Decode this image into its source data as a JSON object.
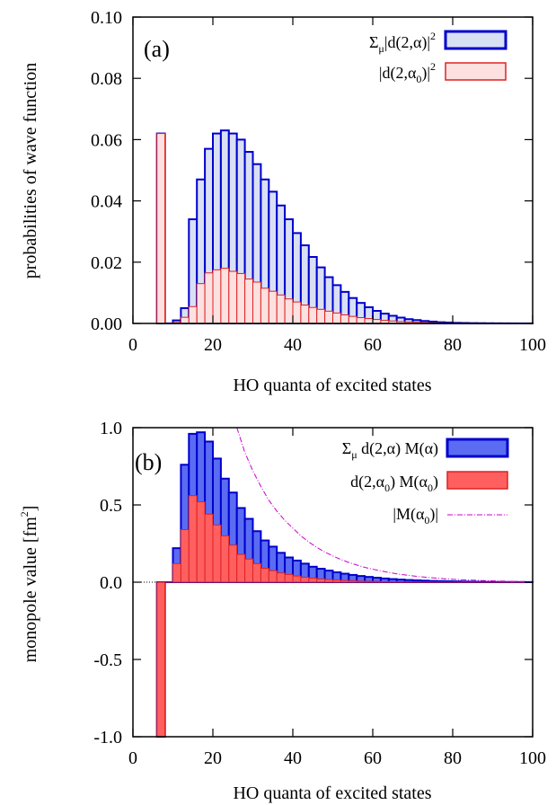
{
  "chart_data": [
    {
      "type": "bar",
      "panel_label": "(a)",
      "xlabel": "HO quanta of excited states",
      "ylabel": "probabilities of wave function",
      "xlim": [
        0,
        100
      ],
      "ylim": [
        0,
        0.1
      ],
      "xticks": [
        "0",
        "20",
        "40",
        "60",
        "80",
        "100"
      ],
      "yticks": [
        "0.00",
        "0.02",
        "0.04",
        "0.06",
        "0.08",
        "0.10"
      ],
      "bar_width": 2,
      "legend_position": "top-right",
      "legend_labels": [
        {
          "base": "Σ",
          "sub": "μ",
          "rest": "|d(2,α)|",
          "sup": "2"
        },
        {
          "base": "|d(2,α",
          "sub": "0",
          "rest": ")|",
          "sup": "2"
        }
      ],
      "series": [
        {
          "name": "Σμ|d(2,α)|²",
          "color": "#0000cc",
          "fill": "#d8e0f4",
          "x": [
            6,
            8,
            10,
            12,
            14,
            16,
            18,
            20,
            22,
            24,
            26,
            28,
            30,
            32,
            34,
            36,
            38,
            40,
            42,
            44,
            46,
            48,
            50,
            52,
            54,
            56,
            58,
            60,
            62,
            64,
            66,
            68,
            70,
            72,
            74,
            76,
            78,
            80,
            82,
            84,
            86,
            88,
            90,
            92,
            94,
            96,
            98
          ],
          "values": [
            0.062,
            0.0,
            0.001,
            0.005,
            0.034,
            0.047,
            0.057,
            0.062,
            0.063,
            0.062,
            0.06,
            0.056,
            0.052,
            0.047,
            0.043,
            0.0385,
            0.034,
            0.0295,
            0.0255,
            0.0217,
            0.0183,
            0.0151,
            0.0125,
            0.0103,
            0.0083,
            0.0067,
            0.0053,
            0.0041,
            0.0032,
            0.0025,
            0.0019,
            0.0014,
            0.0011,
            0.0008,
            0.0006,
            0.0004,
            0.0003,
            0.0002,
            0.00015,
            0.0001,
            8e-05,
            6e-05,
            4e-05,
            3e-05,
            2e-05,
            1e-05,
            1e-05
          ]
        },
        {
          "name": "|d(2,α0)|²",
          "color": "#dd2222",
          "fill": "#fde0e0",
          "x": [
            6,
            8,
            10,
            12,
            14,
            16,
            18,
            20,
            22,
            24,
            26,
            28,
            30,
            32,
            34,
            36,
            38,
            40,
            42,
            44,
            46,
            48,
            50,
            52,
            54,
            56,
            58,
            60,
            62,
            64,
            66,
            68,
            70,
            72,
            74,
            76,
            78,
            80,
            82,
            84,
            86,
            88,
            90,
            92,
            94,
            96,
            98
          ],
          "values": [
            0.062,
            0.0,
            0.0003,
            0.002,
            0.0055,
            0.013,
            0.0165,
            0.0175,
            0.018,
            0.017,
            0.0163,
            0.0145,
            0.0135,
            0.0115,
            0.0105,
            0.0093,
            0.008,
            0.007,
            0.006,
            0.0052,
            0.0046,
            0.004,
            0.0034,
            0.0028,
            0.0023,
            0.0019,
            0.0016,
            0.0013,
            0.001,
            0.0008,
            0.0006,
            0.0005,
            0.0004,
            0.0003,
            0.0002,
            0.00015,
            0.0001,
            8e-05,
            6e-05,
            4e-05,
            3e-05,
            2e-05,
            1e-05,
            1e-05,
            0.0,
            0.0,
            0.0
          ]
        }
      ]
    },
    {
      "type": "bar",
      "panel_label": "(b)",
      "xlabel": "HO quanta of excited states",
      "ylabel_text": "monopole value [fm",
      "ylabel_sup": "2",
      "ylabel_close": "]",
      "xlim": [
        0,
        100
      ],
      "ylim": [
        -1.0,
        1.0
      ],
      "xticks": [
        "0",
        "20",
        "40",
        "60",
        "80",
        "100"
      ],
      "yticks": [
        "-1.0",
        "-0.5",
        "0.0",
        "0.5",
        "1.0"
      ],
      "bar_width": 2,
      "zero_line": "dotted",
      "legend_position": "top-right",
      "legend_labels": [
        {
          "base": "Σ",
          "sub": "μ",
          "rest": " d(2,α) M(α)"
        },
        {
          "base": "d(2,α",
          "sub": "0",
          "rest": ") M(α",
          "sub2": "0",
          "rest2": ")"
        },
        {
          "base": "|M(α",
          "sub": "0",
          "rest": ")|"
        }
      ],
      "series": [
        {
          "name": "Σμ d(2,α) M(α)",
          "color": "#0000cc",
          "fill": "#5a6cf2",
          "x": [
            6,
            8,
            10,
            12,
            14,
            16,
            18,
            20,
            22,
            24,
            26,
            28,
            30,
            32,
            34,
            36,
            38,
            40,
            42,
            44,
            46,
            48,
            50,
            52,
            54,
            56,
            58,
            60,
            62,
            64,
            66,
            68,
            70,
            72,
            74,
            76,
            78,
            80,
            82,
            84,
            86,
            88,
            90,
            92,
            94,
            96,
            98
          ],
          "values": [
            -1.0,
            0.0,
            0.22,
            0.76,
            0.96,
            0.97,
            0.91,
            0.8,
            0.67,
            0.58,
            0.48,
            0.41,
            0.33,
            0.27,
            0.23,
            0.19,
            0.16,
            0.14,
            0.12,
            0.1,
            0.087,
            0.075,
            0.064,
            0.055,
            0.047,
            0.04,
            0.034,
            0.029,
            0.024,
            0.02,
            0.017,
            0.014,
            0.012,
            0.01,
            0.008,
            0.007,
            0.006,
            0.005,
            0.004,
            0.003,
            0.0025,
            0.002,
            0.0015,
            0.001,
            0.001,
            0.0008,
            0.0006
          ]
        },
        {
          "name": "d(2,α0) M(α0)",
          "color": "#dd2222",
          "fill": "#ff5f5f",
          "x": [
            6,
            8,
            10,
            12,
            14,
            16,
            18,
            20,
            22,
            24,
            26,
            28,
            30,
            32,
            34,
            36,
            38,
            40,
            42,
            44,
            46,
            48,
            50,
            52,
            54,
            56,
            58,
            60,
            62,
            64,
            66,
            68,
            70,
            72,
            74,
            76,
            78,
            80,
            82,
            84,
            86,
            88,
            90,
            92,
            94,
            96,
            98
          ],
          "values": [
            -1.0,
            0.0,
            0.12,
            0.34,
            0.56,
            0.52,
            0.44,
            0.37,
            0.3,
            0.24,
            0.18,
            0.15,
            0.12,
            0.09,
            0.075,
            0.06,
            0.05,
            0.04,
            0.032,
            0.026,
            0.021,
            0.017,
            0.014,
            0.011,
            0.009,
            0.007,
            0.006,
            0.005,
            0.004,
            0.003,
            0.0025,
            0.002,
            0.0015,
            0.001,
            0.001,
            0.0008,
            0.0006,
            0.0005,
            0.0004,
            0.0003,
            0.0002,
            0.0002,
            0.0001,
            0.0001,
            0.0001,
            0.0,
            0.0
          ]
        },
        {
          "name": "|M(α0)|",
          "type": "line",
          "style": "dash-dot",
          "color": "#cc00cc",
          "x": [
            26,
            28,
            30,
            32,
            34,
            36,
            38,
            40,
            42,
            44,
            46,
            48,
            50,
            52,
            54,
            56,
            58,
            60,
            62,
            64,
            66,
            68,
            70,
            72,
            74,
            76,
            78,
            80,
            82,
            84,
            86,
            88,
            90,
            92,
            94,
            96,
            98,
            100
          ],
          "values": [
            1.0,
            0.84,
            0.72,
            0.62,
            0.53,
            0.46,
            0.4,
            0.35,
            0.3,
            0.26,
            0.225,
            0.195,
            0.17,
            0.147,
            0.128,
            0.111,
            0.096,
            0.084,
            0.073,
            0.063,
            0.054,
            0.047,
            0.041,
            0.035,
            0.03,
            0.026,
            0.022,
            0.019,
            0.016,
            0.014,
            0.012,
            0.01,
            0.0085,
            0.007,
            0.006,
            0.005,
            0.004,
            0.0035
          ]
        }
      ]
    }
  ]
}
